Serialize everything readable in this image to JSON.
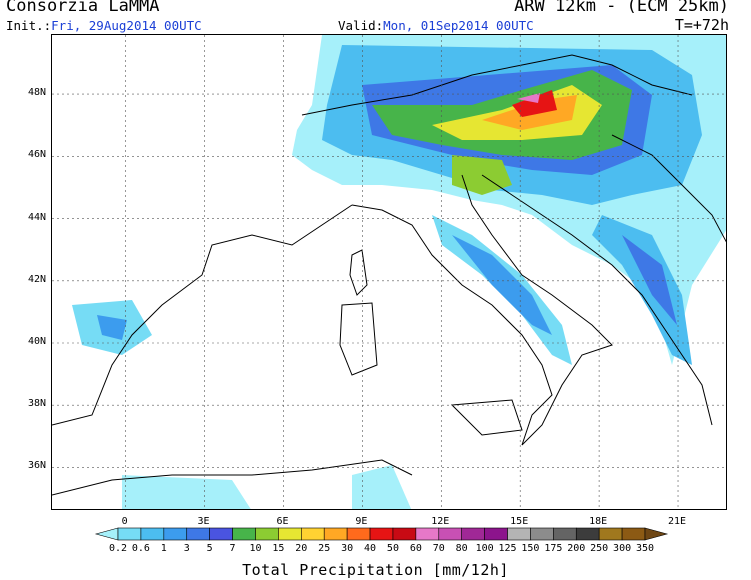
{
  "header": {
    "org": "Consorzia LaMMA",
    "model": "ARW 12km  - (ECM 25km)",
    "init_label": "Init.:",
    "init_value": "Fri, 29Aug2014 00UTC",
    "valid_label": "Valid:",
    "valid_value": "Mon, 01Sep2014 00UTC",
    "lead_time": "T=+72h"
  },
  "axes": {
    "lat_labels": [
      "48N",
      "46N",
      "44N",
      "42N",
      "40N",
      "38N",
      "36N"
    ],
    "lat_values": [
      48,
      46,
      44,
      42,
      40,
      38,
      36
    ],
    "lon_labels": [
      "0",
      "3E",
      "6E",
      "9E",
      "12E",
      "15E",
      "18E",
      "21E"
    ],
    "lon_values": [
      0,
      3,
      6,
      9,
      12,
      15,
      18,
      21
    ],
    "lat_range": [
      34.6,
      49.9
    ],
    "lon_range": [
      -2.8,
      22.9
    ],
    "grid": "dashed"
  },
  "colorbar": {
    "title": "Total Precipitation [mm/12h]",
    "levels": [
      "0.2",
      "0.6",
      "1",
      "3",
      "5",
      "7",
      "10",
      "15",
      "20",
      "25",
      "30",
      "40",
      "50",
      "60",
      "70",
      "80",
      "100",
      "125",
      "150",
      "175",
      "200",
      "250",
      "300",
      "350"
    ],
    "colors": [
      "#a6f0fa",
      "#76dcf5",
      "#4cbdf0",
      "#3c9cee",
      "#3e78e6",
      "#4a54e0",
      "#47b44a",
      "#8ccc32",
      "#e6e632",
      "#ffd232",
      "#ffa824",
      "#ff6a1c",
      "#e61414",
      "#c80a14",
      "#e678c8",
      "#c850b4",
      "#a02896",
      "#8c148c",
      "#b4b4b4",
      "#8c8c8c",
      "#646464",
      "#3c3c3c",
      "#a0781e",
      "#8c5a14",
      "#6e4614"
    ]
  }
}
